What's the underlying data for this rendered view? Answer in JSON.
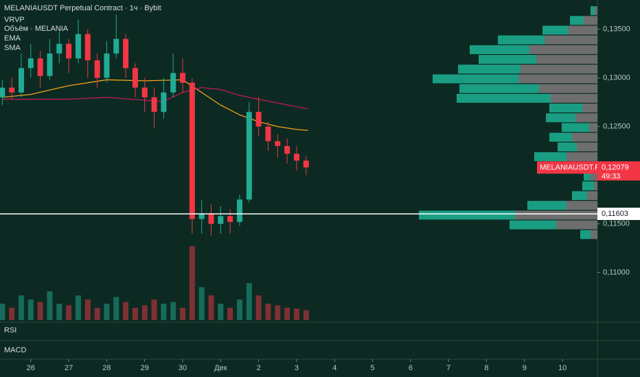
{
  "chart_data": {
    "type": "candlestick",
    "title": "MELANIAUSDT Perpetual Contract · 1ч · Bybit",
    "indicators": [
      "VRVP",
      "Объём · MELANIA",
      "EMA",
      "SMA"
    ],
    "panes": [
      "RSI",
      "MACD"
    ],
    "x": [
      -0.75,
      -0.5,
      -0.25,
      0,
      0.25,
      0.5,
      0.75,
      1,
      1.25,
      1.5,
      1.75,
      2,
      2.25,
      2.5,
      2.75,
      3,
      3.25,
      3.5,
      3.75,
      4,
      4.25,
      4.5,
      4.75,
      5,
      5.25,
      5.5,
      5.75,
      6,
      6.25,
      6.5,
      6.75,
      7,
      7.25
    ],
    "open": [
      0.128,
      0.129,
      0.1285,
      0.131,
      0.132,
      0.1302,
      0.1325,
      0.1335,
      0.132,
      0.1345,
      0.1318,
      0.13,
      0.1325,
      0.134,
      0.131,
      0.129,
      0.128,
      0.1265,
      0.1285,
      0.1305,
      0.1295,
      0.1155,
      0.116,
      0.115,
      0.1158,
      0.1152,
      0.1175,
      0.1265,
      0.125,
      0.1235,
      0.123,
      0.1222,
      0.1215
    ],
    "high": [
      0.1298,
      0.13,
      0.1325,
      0.1335,
      0.1328,
      0.134,
      0.1348,
      0.134,
      0.136,
      0.135,
      0.1325,
      0.1338,
      0.1365,
      0.1345,
      0.1315,
      0.13,
      0.129,
      0.13,
      0.1325,
      0.132,
      0.13,
      0.1175,
      0.117,
      0.1168,
      0.1165,
      0.118,
      0.1275,
      0.128,
      0.1255,
      0.1242,
      0.1238,
      0.123,
      0.122
    ],
    "low": [
      0.1272,
      0.1278,
      0.128,
      0.13,
      0.129,
      0.1298,
      0.1315,
      0.1305,
      0.1315,
      0.13,
      0.129,
      0.1295,
      0.132,
      0.13,
      0.128,
      0.1265,
      0.1248,
      0.1258,
      0.128,
      0.1285,
      0.114,
      0.114,
      0.1138,
      0.114,
      0.114,
      0.1148,
      0.1172,
      0.124,
      0.1225,
      0.1218,
      0.1212,
      0.1205,
      0.12
    ],
    "close": [
      0.129,
      0.1285,
      0.131,
      0.132,
      0.1302,
      0.1325,
      0.1335,
      0.132,
      0.1345,
      0.1318,
      0.13,
      0.1325,
      0.134,
      0.131,
      0.129,
      0.128,
      0.1265,
      0.1285,
      0.1305,
      0.1295,
      0.1155,
      0.116,
      0.115,
      0.1158,
      0.1152,
      0.1175,
      0.1265,
      0.125,
      0.1235,
      0.123,
      0.1222,
      0.1215,
      0.12079
    ],
    "volume": [
      20,
      15,
      30,
      25,
      22,
      35,
      20,
      18,
      30,
      25,
      15,
      20,
      28,
      22,
      15,
      18,
      25,
      20,
      22,
      15,
      90,
      40,
      30,
      20,
      15,
      25,
      45,
      30,
      20,
      18,
      15,
      14,
      12
    ],
    "up_color": "#22ab94",
    "down_color": "#f23645",
    "lines": [
      {
        "name": "EMA",
        "color": "#f7a21b",
        "x": [
          -0.75,
          0,
          1,
          2,
          3,
          4,
          4.5,
          5,
          5.5,
          6,
          6.5,
          7,
          7.3
        ],
        "values": [
          0.128,
          0.1283,
          0.1292,
          0.1298,
          0.1297,
          0.1298,
          0.1285,
          0.1272,
          0.1262,
          0.1255,
          0.125,
          0.1247,
          0.1246
        ]
      },
      {
        "name": "SMA",
        "color": "#c2185b",
        "x": [
          -0.75,
          1,
          2,
          3,
          3.5,
          4,
          4.5,
          5,
          5.5,
          6,
          7.3
        ],
        "values": [
          0.1278,
          0.1278,
          0.128,
          0.1277,
          0.1276,
          0.1285,
          0.129,
          0.1288,
          0.1282,
          0.1278,
          0.1268
        ]
      }
    ],
    "volume_profile": {
      "levels": [
        0.1369,
        0.1359,
        0.1349,
        0.1339,
        0.1329,
        0.1319,
        0.1309,
        0.1299,
        0.1289,
        0.1279,
        0.1269,
        0.1259,
        0.1249,
        0.1239,
        0.1229,
        0.1219,
        0.1209,
        0.1199,
        0.1189,
        0.1179,
        0.1169,
        0.1159,
        0.1149,
        0.1139
      ],
      "up": [
        6,
        20,
        37,
        68,
        87,
        84,
        91,
        125,
        116,
        137,
        48,
        43,
        40,
        33,
        28,
        47,
        20,
        10,
        17,
        22,
        57,
        140,
        68,
        15
      ],
      "down": [
        4,
        20,
        43,
        77,
        99,
        89,
        112,
        115,
        85,
        68,
        22,
        32,
        12,
        37,
        30,
        45,
        20,
        10,
        5,
        15,
        45,
        120,
        60,
        10
      ],
      "up_color": "#1a9e83",
      "down_color": "#6e6e6e"
    },
    "markers": [
      {
        "name": "MELANIAUSDT.P",
        "value": 0.12079,
        "value_label": "0,12079",
        "timer": "49:33",
        "color": "#f23645"
      },
      {
        "value": 0.11603,
        "value_label": "0,11603",
        "color": "#ffffff"
      }
    ],
    "ylim": [
      0.1049,
      0.138
    ],
    "yticks": [
      {
        "value": 0.135,
        "label": "0,13500"
      },
      {
        "value": 0.13,
        "label": "0,13000"
      },
      {
        "value": 0.125,
        "label": "0,12500"
      },
      {
        "value": 0.115,
        "label": "0,11500"
      },
      {
        "value": 0.11,
        "label": "0,11000"
      }
    ],
    "xlim": [
      -0.81,
      14.92
    ],
    "xticks": [
      {
        "value": 0,
        "label": "26"
      },
      {
        "value": 1,
        "label": "27"
      },
      {
        "value": 2,
        "label": "28"
      },
      {
        "value": 3,
        "label": "29"
      },
      {
        "value": 4,
        "label": "30"
      },
      {
        "value": 5,
        "label": "Дек"
      },
      {
        "value": 6,
        "label": "2"
      },
      {
        "value": 7,
        "label": "3"
      },
      {
        "value": 8,
        "label": "4"
      },
      {
        "value": 9,
        "label": "5"
      },
      {
        "value": 10,
        "label": "6"
      },
      {
        "value": 11,
        "label": "7"
      },
      {
        "value": 12,
        "label": "8"
      },
      {
        "value": 13,
        "label": "9"
      },
      {
        "value": 14,
        "label": "10"
      }
    ],
    "grid": false
  }
}
